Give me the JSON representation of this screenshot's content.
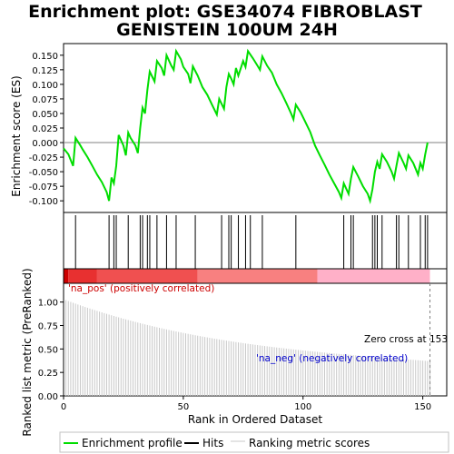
{
  "title_line1": "Enrichment plot: GSE34074 FIBROBLAST",
  "title_line2": "GENISTEIN 100UM 24H",
  "chart_data": {
    "type": "line",
    "xlabel": "Rank in Ordered Dataset",
    "xlim": [
      0,
      160
    ],
    "x_ticks": [
      0,
      50,
      100,
      150
    ],
    "top_panel": {
      "ylabel": "Enrichment score (ES)",
      "ylim": [
        -0.12,
        0.17
      ],
      "y_ticks": [
        "0.150",
        "0.125",
        "0.100",
        "0.075",
        "0.050",
        "0.025",
        "0.000",
        "-0.025",
        "-0.050",
        "-0.075",
        "-0.100"
      ],
      "y_tick_values": [
        0.15,
        0.125,
        0.1,
        0.075,
        0.05,
        0.025,
        0,
        -0.025,
        -0.05,
        -0.075,
        -0.1
      ],
      "series_name": "Enrichment profile",
      "color": "#00dd00",
      "points": [
        [
          0,
          -0.01
        ],
        [
          2,
          -0.02
        ],
        [
          4,
          -0.04
        ],
        [
          5,
          0.008
        ],
        [
          7,
          -0.005
        ],
        [
          8,
          -0.012
        ],
        [
          10,
          -0.025
        ],
        [
          12,
          -0.04
        ],
        [
          14,
          -0.055
        ],
        [
          16,
          -0.068
        ],
        [
          18,
          -0.085
        ],
        [
          19,
          -0.1
        ],
        [
          20,
          -0.06
        ],
        [
          21,
          -0.07
        ],
        [
          22,
          -0.04
        ],
        [
          23,
          0.013
        ],
        [
          25,
          -0.005
        ],
        [
          26,
          -0.022
        ],
        [
          27,
          0.017
        ],
        [
          28,
          0.008
        ],
        [
          30,
          -0.005
        ],
        [
          31,
          -0.018
        ],
        [
          32,
          0.025
        ],
        [
          33,
          0.06
        ],
        [
          34,
          0.05
        ],
        [
          35,
          0.09
        ],
        [
          36,
          0.122
        ],
        [
          38,
          0.105
        ],
        [
          39,
          0.14
        ],
        [
          41,
          0.128
        ],
        [
          42,
          0.115
        ],
        [
          43,
          0.15
        ],
        [
          45,
          0.132
        ],
        [
          46,
          0.125
        ],
        [
          47,
          0.157
        ],
        [
          49,
          0.143
        ],
        [
          50,
          0.13
        ],
        [
          52,
          0.118
        ],
        [
          53,
          0.102
        ],
        [
          54,
          0.131
        ],
        [
          56,
          0.115
        ],
        [
          58,
          0.095
        ],
        [
          60,
          0.082
        ],
        [
          62,
          0.065
        ],
        [
          64,
          0.048
        ],
        [
          65,
          0.075
        ],
        [
          67,
          0.058
        ],
        [
          68,
          0.095
        ],
        [
          69,
          0.118
        ],
        [
          70,
          0.11
        ],
        [
          71,
          0.1
        ],
        [
          72,
          0.128
        ],
        [
          73,
          0.115
        ],
        [
          75,
          0.14
        ],
        [
          76,
          0.13
        ],
        [
          77,
          0.157
        ],
        [
          79,
          0.145
        ],
        [
          81,
          0.132
        ],
        [
          82,
          0.125
        ],
        [
          83,
          0.148
        ],
        [
          85,
          0.132
        ],
        [
          87,
          0.12
        ],
        [
          89,
          0.1
        ],
        [
          91,
          0.085
        ],
        [
          93,
          0.068
        ],
        [
          95,
          0.05
        ],
        [
          96,
          0.04
        ],
        [
          97,
          0.065
        ],
        [
          99,
          0.052
        ],
        [
          101,
          0.035
        ],
        [
          103,
          0.018
        ],
        [
          105,
          -0.005
        ],
        [
          107,
          -0.022
        ],
        [
          109,
          -0.038
        ],
        [
          111,
          -0.055
        ],
        [
          113,
          -0.07
        ],
        [
          115,
          -0.085
        ],
        [
          116,
          -0.095
        ],
        [
          117,
          -0.07
        ],
        [
          119,
          -0.088
        ],
        [
          120,
          -0.062
        ],
        [
          121,
          -0.042
        ],
        [
          123,
          -0.058
        ],
        [
          125,
          -0.075
        ],
        [
          127,
          -0.088
        ],
        [
          128,
          -0.1
        ],
        [
          129,
          -0.08
        ],
        [
          130,
          -0.05
        ],
        [
          131,
          -0.033
        ],
        [
          132,
          -0.045
        ],
        [
          133,
          -0.02
        ],
        [
          135,
          -0.033
        ],
        [
          137,
          -0.05
        ],
        [
          138,
          -0.062
        ],
        [
          139,
          -0.04
        ],
        [
          140,
          -0.018
        ],
        [
          142,
          -0.035
        ],
        [
          143,
          -0.045
        ],
        [
          144,
          -0.022
        ],
        [
          146,
          -0.035
        ],
        [
          148,
          -0.055
        ],
        [
          149,
          -0.035
        ],
        [
          150,
          -0.045
        ],
        [
          151,
          -0.02
        ],
        [
          152,
          0.0
        ]
      ]
    },
    "hits": {
      "series_name": "Hits",
      "ranks": [
        5,
        19,
        21,
        22,
        27,
        32,
        33,
        35,
        36,
        39,
        43,
        47,
        55,
        66,
        69,
        70,
        73,
        76,
        78,
        83,
        97,
        117,
        120,
        121,
        129,
        130,
        131,
        133,
        139,
        140,
        144,
        149,
        151,
        152
      ]
    },
    "bottom_panel": {
      "ylabel": "Ranked list metric (PreRanked)",
      "ylim": [
        0,
        1.2
      ],
      "y_ticks": [
        "0.00",
        "0.25",
        "0.50",
        "0.75",
        "1.00"
      ],
      "y_tick_values": [
        0,
        0.25,
        0.5,
        0.75,
        1.0
      ],
      "series_name": "Ranking metric scores",
      "color": "#c8c8c8",
      "metric_start": 1.02,
      "metric_end": 0.37,
      "n": 153,
      "zero_cross_label": "Zero cross at 153",
      "zero_cross_rank": 153,
      "pos_label": "'na_pos' (positively correlated)",
      "neg_label": "'na_neg' (negatively correlated)",
      "pos_color": "#cc0000",
      "neg_color": "#0000cc"
    },
    "heatbar_colors": [
      "#cc0000",
      "#e83030",
      "#f05050",
      "#f88080",
      "#ffb0c8",
      "#f5b0e8"
    ]
  },
  "legend": {
    "items": [
      {
        "label": "Enrichment profile",
        "color": "#00dd00"
      },
      {
        "label": "Hits",
        "color": "#000000"
      },
      {
        "label": "Ranking metric scores",
        "color": "#c8c8c8"
      }
    ]
  }
}
